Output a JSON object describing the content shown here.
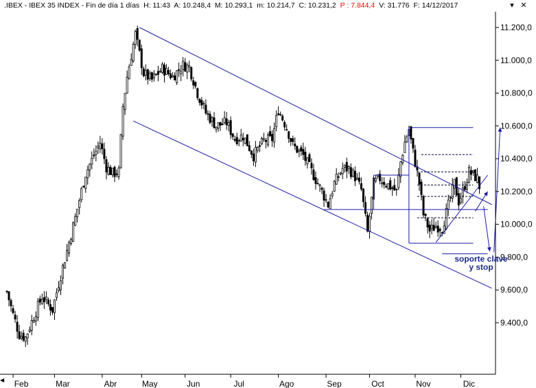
{
  "header": {
    "symbol": ".IBEX",
    "name": "IBEX 35 INDEX",
    "period": "Fin de día 1 días",
    "H": "H: 11:43",
    "A": "A: 10.248,4",
    "M": "M: 10.293,1",
    "m": "m: 10.214,7",
    "C": "C: 10.231,2",
    "P": "P : 7.844,4",
    "V": "V: 31.776",
    "F": "F: 14/12/2017"
  },
  "window": {
    "minimize_icon": "minimize-icon",
    "close_icon": "close-icon"
  },
  "chart_data": {
    "type": "candlestick",
    "title": ".IBEX - IBEX 35 INDEX",
    "y_axis": {
      "position": "right",
      "ylim": [
        9200,
        11350
      ],
      "ticks": [
        9400,
        9600,
        9800,
        10000,
        10200,
        10400,
        10600,
        10800,
        11000,
        11200
      ],
      "tick_labels": [
        "9.400,0",
        "9.600,0",
        "9.800,0",
        "10.000,0",
        "10.200,0",
        "10.400,0",
        "10.600,0",
        "10.800,0",
        "11.000,0",
        "11.200,0"
      ]
    },
    "x_axis": {
      "months": [
        "Feb",
        "Mar",
        "Abr",
        "May",
        "Jun",
        "Jul",
        "Ago",
        "Sep",
        "Oct",
        "Nov",
        "Dic"
      ],
      "month_day_index": [
        3,
        23,
        46,
        65,
        86,
        108,
        131,
        154,
        175,
        197,
        219
      ]
    },
    "grid": false,
    "sessions": 234,
    "anchors": [
      [
        0,
        9590
      ],
      [
        3,
        9450
      ],
      [
        6,
        9330
      ],
      [
        9,
        9310
      ],
      [
        13,
        9440
      ],
      [
        17,
        9560
      ],
      [
        22,
        9480
      ],
      [
        25,
        9640
      ],
      [
        28,
        9790
      ],
      [
        33,
        10040
      ],
      [
        38,
        10310
      ],
      [
        42,
        10420
      ],
      [
        45,
        10500
      ],
      [
        48,
        10350
      ],
      [
        51,
        10310
      ],
      [
        54,
        10320
      ],
      [
        56,
        10720
      ],
      [
        58,
        10900
      ],
      [
        62,
        11160
      ],
      [
        66,
        10920
      ],
      [
        70,
        10880
      ],
      [
        75,
        10950
      ],
      [
        80,
        10900
      ],
      [
        85,
        10970
      ],
      [
        88,
        10960
      ],
      [
        92,
        10800
      ],
      [
        96,
        10680
      ],
      [
        101,
        10600
      ],
      [
        106,
        10620
      ],
      [
        110,
        10520
      ],
      [
        114,
        10540
      ],
      [
        119,
        10420
      ],
      [
        124,
        10510
      ],
      [
        128,
        10520
      ],
      [
        131,
        10700
      ],
      [
        135,
        10590
      ],
      [
        138,
        10480
      ],
      [
        143,
        10420
      ],
      [
        148,
        10300
      ],
      [
        152,
        10200
      ],
      [
        155,
        10120
      ],
      [
        158,
        10250
      ],
      [
        162,
        10340
      ],
      [
        165,
        10340
      ],
      [
        168,
        10290
      ],
      [
        171,
        10210
      ],
      [
        174,
        9950
      ],
      [
        177,
        10250
      ],
      [
        180,
        10280
      ],
      [
        184,
        10240
      ],
      [
        188,
        10200
      ],
      [
        190,
        10380
      ],
      [
        192,
        10500
      ],
      [
        194,
        10580
      ],
      [
        196,
        10440
      ],
      [
        199,
        10250
      ],
      [
        201,
        10060
      ],
      [
        204,
        9960
      ],
      [
        207,
        9990
      ],
      [
        210,
        9980
      ],
      [
        212,
        10070
      ],
      [
        214,
        10160
      ],
      [
        216,
        10250
      ],
      [
        218,
        10140
      ],
      [
        220,
        10200
      ],
      [
        223,
        10320
      ],
      [
        225,
        10300
      ],
      [
        227,
        10280
      ],
      [
        228,
        10231
      ]
    ],
    "lines": [
      {
        "name": "canal-superior",
        "x": [
          64,
          234
        ],
        "y": [
          11200,
          10120
        ]
      },
      {
        "name": "canal-inferior",
        "x": [
          61,
          234
        ],
        "y": [
          10630,
          9610
        ]
      },
      {
        "name": "soporte-horizontal",
        "x": [
          153,
          232
        ],
        "y": [
          10090,
          10090
        ]
      },
      {
        "name": "rectangulo-superior",
        "x": [
          194,
          225
        ],
        "y": [
          10590,
          10590
        ]
      },
      {
        "name": "rectangulo-inferior",
        "x": [
          194,
          225
        ],
        "y": [
          9885,
          9885
        ]
      },
      {
        "name": "rectangulo-izquierda",
        "x": [
          194,
          194
        ],
        "y": [
          9885,
          10590
        ]
      },
      {
        "name": "caja-octubre-superior",
        "x": [
          177,
          194
        ],
        "y": [
          10300,
          10300
        ]
      },
      {
        "name": "caja-octubre-izquierda",
        "x": [
          177,
          177
        ],
        "y": [
          10090,
          10300
        ]
      },
      {
        "name": "soporte-clave",
        "x": [
          210,
          232
        ],
        "y": [
          9820,
          9820
        ]
      },
      {
        "name": "linea-alcista",
        "x": [
          207,
          232
        ],
        "y": [
          9890,
          10300
        ]
      }
    ],
    "dashed_levels": [
      {
        "x": [
          200,
          225
        ],
        "y": 10425
      },
      {
        "x": [
          198,
          225
        ],
        "y": 10320
      },
      {
        "x": [
          198,
          225
        ],
        "y": 10240
      },
      {
        "x": [
          198,
          225
        ],
        "y": 10170
      },
      {
        "x": [
          198,
          225
        ],
        "y": 10040
      }
    ],
    "arrows": [
      {
        "from": [
          230,
          10110
        ],
        "to": [
          233,
          9835
        ]
      },
      {
        "from": [
          235,
          9830
        ],
        "to": [
          238,
          10590
        ]
      },
      {
        "from": [
          226,
          10080
        ],
        "to": [
          232,
          10200
        ]
      }
    ],
    "annotation": {
      "lines": [
        "soporte clave",
        "y stop"
      ],
      "color": "#1a2a8a"
    },
    "colors": {
      "candles": "#000000",
      "channel": "#1a1aa6",
      "annotation": "#1a2a8a"
    }
  }
}
